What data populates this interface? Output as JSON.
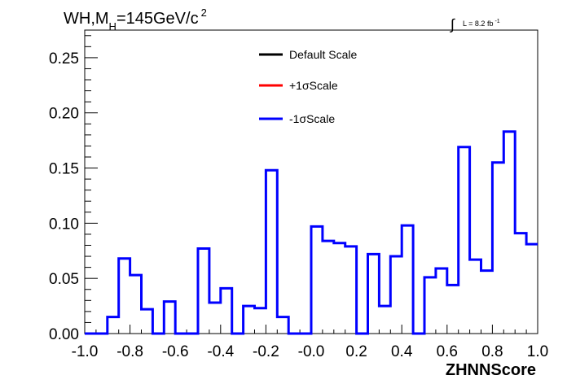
{
  "chart_data": {
    "type": "histogram",
    "title_parts": {
      "main": "WH,M",
      "subscript": "H",
      "value": "=145GeV/c",
      "superscript": "2"
    },
    "lumi_parts": {
      "integral": "∫",
      "text": "L = 8.2 fb",
      "superscript": "-1"
    },
    "xlabel": "ZHNNScore",
    "ylabel": "",
    "xlim": [
      -1.0,
      1.0
    ],
    "ylim": [
      0.0,
      0.275
    ],
    "x_ticks": [
      "-1.0",
      "-0.8",
      "-0.6",
      "-0.4",
      "-0.2",
      "-0.0",
      "0.2",
      "0.4",
      "0.6",
      "0.8",
      "1.0"
    ],
    "x_tick_values": [
      -1.0,
      -0.8,
      -0.6,
      -0.4,
      -0.2,
      0.0,
      0.2,
      0.4,
      0.6,
      0.8,
      1.0
    ],
    "y_ticks": [
      "0.00",
      "0.05",
      "0.10",
      "0.15",
      "0.20",
      "0.25"
    ],
    "y_tick_values": [
      0.0,
      0.05,
      0.1,
      0.15,
      0.2,
      0.25
    ],
    "bin_edges_start": -1.0,
    "bin_width": 0.05,
    "grid": false,
    "legend_position": "top-center",
    "series": [
      {
        "name": "Default Scale",
        "color": "#000000",
        "visible_in_plot": false
      },
      {
        "name": "+1σScale",
        "color": "#ff0000",
        "visible_in_plot": false
      },
      {
        "name": "-1σScale",
        "color": "#0000ff",
        "visible_in_plot": true,
        "values": [
          0.0,
          0.0,
          0.015,
          0.068,
          0.053,
          0.022,
          0.0,
          0.029,
          0.0,
          0.0,
          0.077,
          0.028,
          0.041,
          0.0,
          0.025,
          0.023,
          0.148,
          0.015,
          0.0,
          0.0,
          0.097,
          0.084,
          0.082,
          0.079,
          0.0,
          0.072,
          0.025,
          0.07,
          0.098,
          0.0,
          0.051,
          0.059,
          0.044,
          0.169,
          0.067,
          0.057,
          0.155,
          0.183,
          0.091,
          0.081
        ]
      }
    ]
  }
}
